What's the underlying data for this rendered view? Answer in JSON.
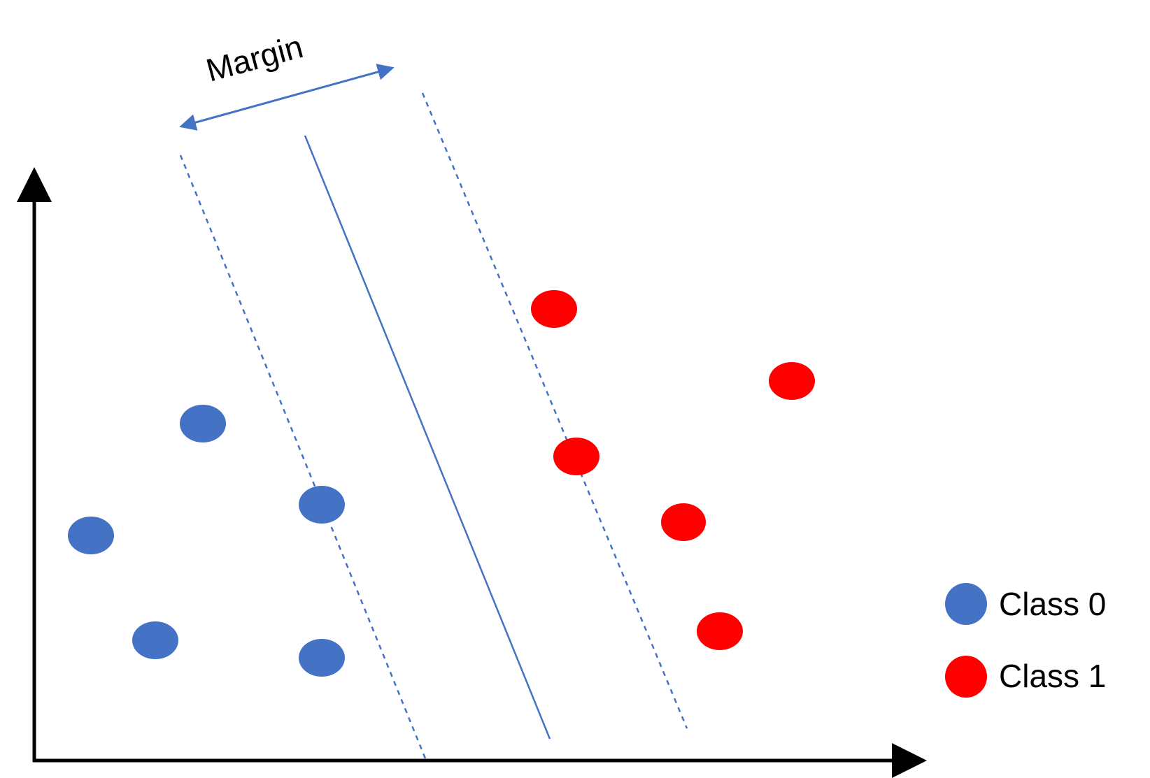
{
  "diagram": {
    "margin_label": "Margin",
    "legend": [
      {
        "label": "Class 0",
        "color": "#4472C4"
      },
      {
        "label": "Class 1",
        "color": "#FF0000"
      }
    ]
  },
  "colors": {
    "class0": "#4472C4",
    "class1": "#FF0000",
    "hyperplane": "#4472C4",
    "axis": "#000000"
  }
}
